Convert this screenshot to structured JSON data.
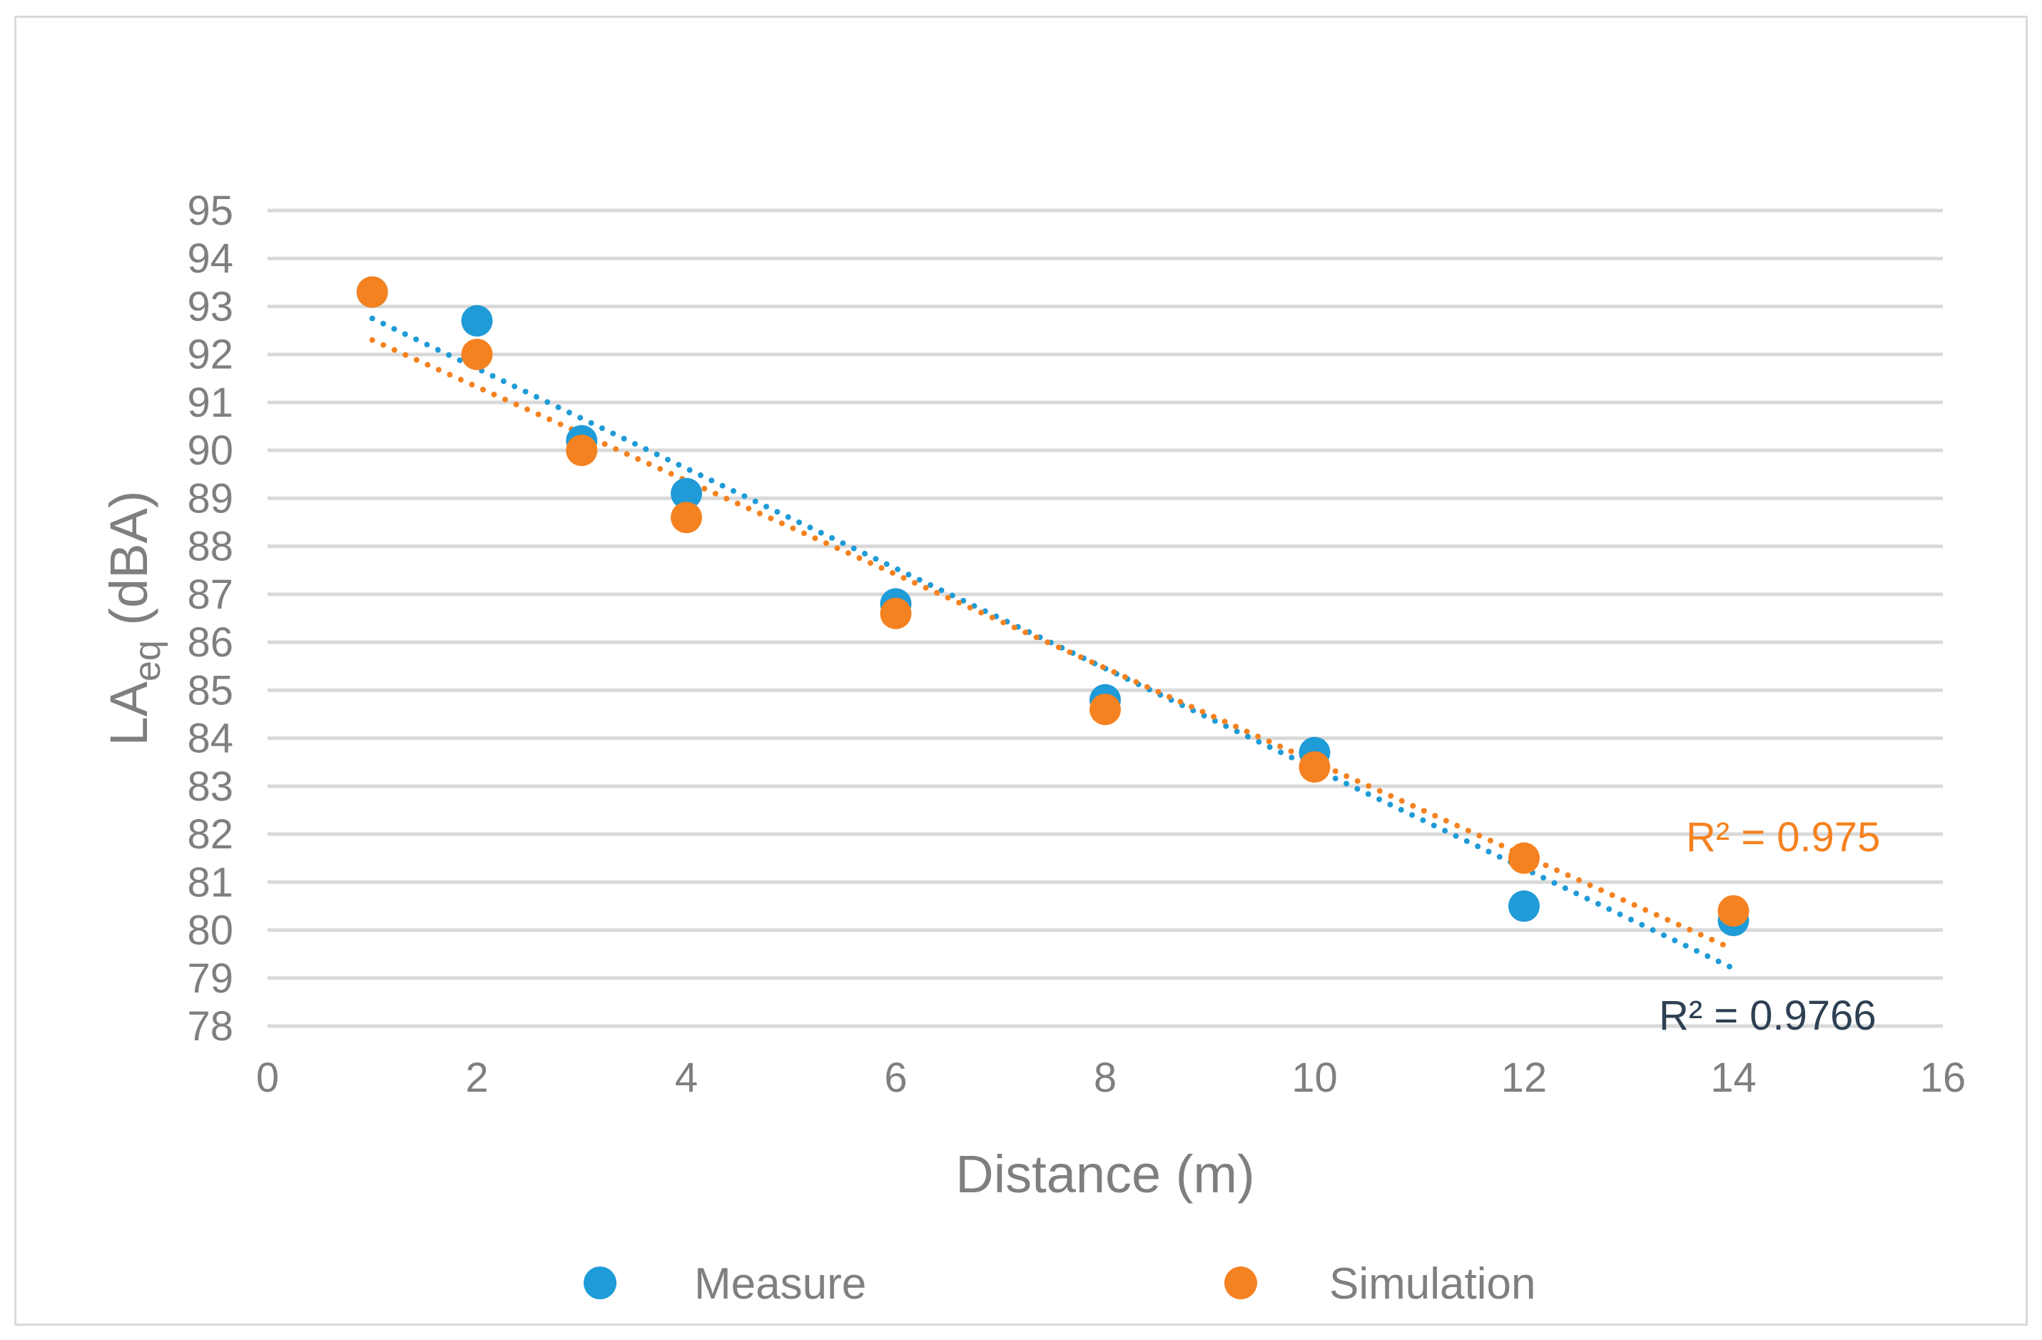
{
  "chart_data": {
    "type": "scatter",
    "xlabel": "Distance (m)",
    "ylabel": "LA",
    "ylabel_sub": "eq",
    "ylabel_suffix": " (dBA)",
    "xlim": [
      0,
      16
    ],
    "ylim": [
      78,
      95
    ],
    "xticks": [
      "0",
      "2",
      "4",
      "6",
      "8",
      "10",
      "12",
      "14",
      "16"
    ],
    "yticks": [
      "78",
      "79",
      "80",
      "81",
      "82",
      "83",
      "84",
      "85",
      "86",
      "87",
      "88",
      "89",
      "90",
      "91",
      "92",
      "93",
      "94",
      "95"
    ],
    "grid": "horizontal",
    "legend_position": "bottom",
    "series": [
      {
        "name": "Measure",
        "color": "#1f9bd7",
        "x": [
          1,
          2,
          3,
          4,
          6,
          8,
          10,
          12,
          14
        ],
        "y": [
          93.3,
          92.7,
          90.2,
          89.1,
          86.8,
          84.8,
          83.7,
          80.5,
          80.2
        ],
        "trendline": {
          "type": "linear",
          "x": [
            1,
            14
          ],
          "y": [
            92.75,
            79.2
          ]
        },
        "r2_label": "R² = 0.9766",
        "r2_color": "#2e4053"
      },
      {
        "name": "Simulation",
        "color": "#f58220",
        "x": [
          1,
          2,
          3,
          4,
          6,
          8,
          10,
          12,
          14
        ],
        "y": [
          93.3,
          92.0,
          90.0,
          88.6,
          86.6,
          84.6,
          83.4,
          81.5,
          80.4
        ],
        "trendline": {
          "type": "linear",
          "x": [
            1,
            14
          ],
          "y": [
            92.3,
            79.6
          ]
        },
        "r2_label": "R² = 0.975",
        "r2_color": "#f58220"
      }
    ]
  }
}
